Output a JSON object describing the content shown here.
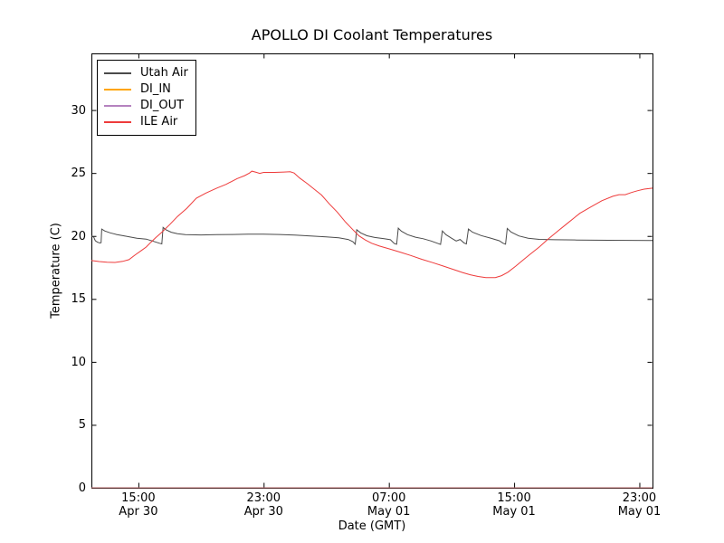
{
  "title": "APOLLO DI Coolant Temperatures",
  "legend": {
    "position": "upper left",
    "items": [
      {
        "label": "Utah Air",
        "color": "#4a4a4a",
        "opacity": 1
      },
      {
        "label": "DI_IN",
        "color": "#ffa500",
        "opacity": 1
      },
      {
        "label": "DI_OUT",
        "color": "#8d3f9d",
        "opacity": 0.65
      },
      {
        "label": "ILE Air",
        "color": "#ee3b3b",
        "opacity": 1
      }
    ]
  },
  "chart_data": {
    "type": "line",
    "title": "APOLLO DI Coolant Temperatures",
    "xlabel": "Date (GMT)",
    "ylabel": "Temperature (C)",
    "x_units": "hours after Apr 30 12:00 GMT",
    "xlim": [
      0,
      35.84
    ],
    "ylim": [
      0,
      34.5
    ],
    "grid": false,
    "y_ticks": [
      {
        "v": 0,
        "label": "0"
      },
      {
        "v": 5,
        "label": "5"
      },
      {
        "v": 10,
        "label": "10"
      },
      {
        "v": 15,
        "label": "15"
      },
      {
        "v": 20,
        "label": "20"
      },
      {
        "v": 25,
        "label": "25"
      },
      {
        "v": 30,
        "label": "30"
      }
    ],
    "x_ticks": [
      {
        "t": 3,
        "time": "15:00",
        "date": "Apr 30"
      },
      {
        "t": 11,
        "time": "23:00",
        "date": "Apr 30"
      },
      {
        "t": 19,
        "time": "07:00",
        "date": "May 01"
      },
      {
        "t": 27,
        "time": "15:00",
        "date": "May 01"
      },
      {
        "t": 35,
        "time": "23:00",
        "date": "May 01"
      }
    ],
    "series": [
      {
        "name": "Utah Air",
        "color": "#4a4a4a",
        "opacity": 1,
        "points": [
          [
            0,
            20.0
          ],
          [
            0.15,
            19.9
          ],
          [
            0.25,
            19.62
          ],
          [
            0.4,
            19.5
          ],
          [
            0.55,
            19.44
          ],
          [
            0.62,
            19.47
          ],
          [
            0.66,
            20.55
          ],
          [
            0.85,
            20.4
          ],
          [
            1.2,
            20.25
          ],
          [
            1.6,
            20.12
          ],
          [
            2.2,
            19.98
          ],
          [
            2.9,
            19.82
          ],
          [
            3.5,
            19.75
          ],
          [
            3.9,
            19.6
          ],
          [
            4.15,
            19.5
          ],
          [
            4.35,
            19.42
          ],
          [
            4.5,
            19.37
          ],
          [
            4.58,
            20.68
          ],
          [
            4.75,
            20.5
          ],
          [
            5.1,
            20.3
          ],
          [
            5.5,
            20.18
          ],
          [
            6.0,
            20.1
          ],
          [
            7.0,
            20.08
          ],
          [
            8.0,
            20.1
          ],
          [
            9.0,
            20.12
          ],
          [
            10.0,
            20.14
          ],
          [
            11.0,
            20.15
          ],
          [
            12.0,
            20.12
          ],
          [
            13.0,
            20.07
          ],
          [
            14.0,
            20.0
          ],
          [
            15.0,
            19.93
          ],
          [
            15.8,
            19.85
          ],
          [
            16.4,
            19.72
          ],
          [
            16.7,
            19.55
          ],
          [
            16.85,
            19.35
          ],
          [
            16.95,
            20.5
          ],
          [
            17.2,
            20.25
          ],
          [
            17.6,
            20.02
          ],
          [
            18.1,
            19.88
          ],
          [
            18.7,
            19.78
          ],
          [
            19.1,
            19.7
          ],
          [
            19.35,
            19.4
          ],
          [
            19.5,
            19.34
          ],
          [
            19.6,
            20.62
          ],
          [
            19.8,
            20.38
          ],
          [
            20.2,
            20.1
          ],
          [
            20.7,
            19.9
          ],
          [
            21.2,
            19.78
          ],
          [
            21.7,
            19.6
          ],
          [
            22.1,
            19.42
          ],
          [
            22.3,
            19.33
          ],
          [
            22.42,
            20.4
          ],
          [
            22.65,
            20.1
          ],
          [
            23.0,
            19.82
          ],
          [
            23.3,
            19.6
          ],
          [
            23.55,
            19.72
          ],
          [
            23.8,
            19.45
          ],
          [
            23.95,
            19.37
          ],
          [
            24.08,
            20.55
          ],
          [
            24.35,
            20.3
          ],
          [
            24.9,
            20.03
          ],
          [
            25.5,
            19.83
          ],
          [
            26.05,
            19.62
          ],
          [
            26.3,
            19.42
          ],
          [
            26.45,
            19.35
          ],
          [
            26.56,
            20.6
          ],
          [
            26.8,
            20.32
          ],
          [
            27.3,
            20.0
          ],
          [
            27.9,
            19.82
          ],
          [
            28.6,
            19.73
          ],
          [
            29.6,
            19.7
          ],
          [
            31.0,
            19.68
          ],
          [
            33.0,
            19.66
          ],
          [
            35.84,
            19.64
          ]
        ]
      },
      {
        "name": "DI_IN",
        "color": "#ffa500",
        "opacity": 1,
        "points": [
          [
            0,
            0
          ],
          [
            35.84,
            0
          ]
        ]
      },
      {
        "name": "DI_OUT",
        "color": "#8d3f9d",
        "opacity": 0.65,
        "points": [
          [
            0,
            0
          ],
          [
            35.84,
            0
          ]
        ]
      },
      {
        "name": "ILE Air",
        "color": "#ee3b3b",
        "opacity": 1,
        "points": [
          [
            0,
            18.05
          ],
          [
            0.5,
            17.97
          ],
          [
            1.0,
            17.92
          ],
          [
            1.5,
            17.9
          ],
          [
            2.0,
            17.98
          ],
          [
            2.4,
            18.12
          ],
          [
            2.8,
            18.5
          ],
          [
            3.2,
            18.85
          ],
          [
            3.5,
            19.12
          ],
          [
            3.8,
            19.5
          ],
          [
            4.1,
            19.85
          ],
          [
            4.5,
            20.3
          ],
          [
            5.0,
            20.9
          ],
          [
            5.5,
            21.55
          ],
          [
            6.1,
            22.2
          ],
          [
            6.7,
            23.0
          ],
          [
            7.3,
            23.4
          ],
          [
            8.0,
            23.8
          ],
          [
            8.6,
            24.1
          ],
          [
            9.3,
            24.55
          ],
          [
            9.8,
            24.8
          ],
          [
            10.1,
            25.0
          ],
          [
            10.25,
            25.15
          ],
          [
            10.55,
            25.05
          ],
          [
            10.75,
            24.97
          ],
          [
            11.0,
            25.05
          ],
          [
            11.7,
            25.05
          ],
          [
            12.3,
            25.08
          ],
          [
            12.7,
            25.1
          ],
          [
            12.95,
            25.0
          ],
          [
            13.3,
            24.6
          ],
          [
            13.8,
            24.15
          ],
          [
            14.3,
            23.65
          ],
          [
            14.7,
            23.25
          ],
          [
            15.2,
            22.55
          ],
          [
            15.7,
            21.9
          ],
          [
            16.2,
            21.15
          ],
          [
            16.7,
            20.5
          ],
          [
            17.1,
            20.0
          ],
          [
            17.5,
            19.68
          ],
          [
            17.9,
            19.42
          ],
          [
            18.4,
            19.2
          ],
          [
            19.0,
            18.98
          ],
          [
            19.7,
            18.72
          ],
          [
            20.4,
            18.45
          ],
          [
            21.1,
            18.15
          ],
          [
            21.8,
            17.88
          ],
          [
            22.5,
            17.6
          ],
          [
            23.1,
            17.35
          ],
          [
            23.7,
            17.1
          ],
          [
            24.2,
            16.92
          ],
          [
            24.7,
            16.78
          ],
          [
            25.2,
            16.7
          ],
          [
            25.8,
            16.7
          ],
          [
            26.2,
            16.85
          ],
          [
            26.6,
            17.12
          ],
          [
            27.1,
            17.6
          ],
          [
            27.6,
            18.12
          ],
          [
            28.1,
            18.62
          ],
          [
            28.6,
            19.12
          ],
          [
            29.1,
            19.68
          ],
          [
            29.7,
            20.3
          ],
          [
            30.4,
            21.0
          ],
          [
            31.2,
            21.8
          ],
          [
            31.9,
            22.3
          ],
          [
            32.6,
            22.8
          ],
          [
            33.3,
            23.15
          ],
          [
            33.7,
            23.28
          ],
          [
            34.1,
            23.28
          ],
          [
            34.5,
            23.45
          ],
          [
            34.9,
            23.6
          ],
          [
            35.3,
            23.72
          ],
          [
            35.84,
            23.8
          ]
        ]
      }
    ]
  }
}
